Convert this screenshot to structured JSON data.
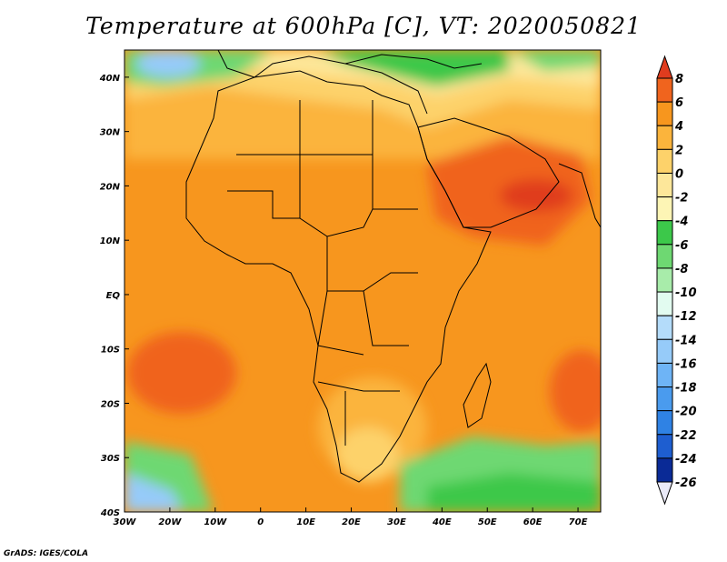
{
  "title": "Temperature at 600hPa [C], VT: 2020050821",
  "credit": "GrADS: IGES/COLA",
  "map": {
    "lon_range": [
      -30,
      75
    ],
    "lat_range": [
      -40,
      45
    ],
    "lon_ticks": [
      {
        "value": -30,
        "label": "30W"
      },
      {
        "value": -20,
        "label": "20W"
      },
      {
        "value": -10,
        "label": "10W"
      },
      {
        "value": 0,
        "label": "0"
      },
      {
        "value": 10,
        "label": "10E"
      },
      {
        "value": 20,
        "label": "20E"
      },
      {
        "value": 30,
        "label": "30E"
      },
      {
        "value": 40,
        "label": "40E"
      },
      {
        "value": 50,
        "label": "50E"
      },
      {
        "value": 60,
        "label": "60E"
      },
      {
        "value": 70,
        "label": "70E"
      }
    ],
    "lat_ticks": [
      {
        "value": 40,
        "label": "40N"
      },
      {
        "value": 30,
        "label": "30N"
      },
      {
        "value": 20,
        "label": "20N"
      },
      {
        "value": 10,
        "label": "10N"
      },
      {
        "value": 0,
        "label": "EQ"
      },
      {
        "value": -10,
        "label": "10S"
      },
      {
        "value": -20,
        "label": "20S"
      },
      {
        "value": -30,
        "label": "30S"
      },
      {
        "value": -40,
        "label": "40S"
      }
    ]
  },
  "colorbar": {
    "levels": [
      8,
      6,
      4,
      2,
      0,
      -2,
      -4,
      -6,
      -8,
      -10,
      -12,
      -14,
      -16,
      -18,
      -20,
      -22,
      -24,
      -26
    ],
    "labels": [
      "8",
      "6",
      "4",
      "2",
      "0",
      "-2",
      "-4",
      "-6",
      "-8",
      "-10",
      "-12",
      "-14",
      "-16",
      "-18",
      "-20",
      "-22",
      "-24",
      "-26"
    ],
    "colors": [
      "#e03c1e",
      "#f0641e",
      "#f7961e",
      "#fbb43c",
      "#fdd26a",
      "#fde79a",
      "#fdf5b5",
      "#3cc84a",
      "#6ed872",
      "#a8ecaa",
      "#e2fbf0",
      "#b4dcfa",
      "#96cbf9",
      "#6eb4f6",
      "#4a9bee",
      "#2f82e4",
      "#1e5ed0",
      "#0a2a96",
      "#eaeaf8"
    ]
  }
}
